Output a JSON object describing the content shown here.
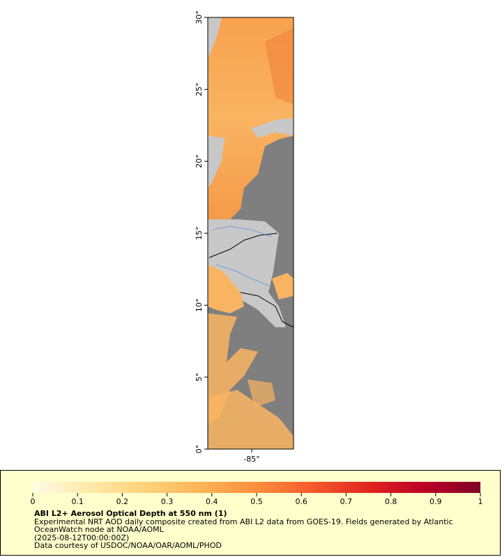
{
  "map": {
    "ylim": [
      0,
      30
    ],
    "yticks": [
      {
        "value": 0,
        "label": "0°"
      },
      {
        "value": 5,
        "label": "5°"
      },
      {
        "value": 10,
        "label": "10°"
      },
      {
        "value": 15,
        "label": "15°"
      },
      {
        "value": 20,
        "label": "20°"
      },
      {
        "value": 25,
        "label": "25°"
      },
      {
        "value": 30,
        "label": "30°"
      }
    ],
    "xlim": [
      -88.05,
      -82.1
    ],
    "xticks": [
      {
        "value": -85,
        "label": "-85°"
      }
    ]
  },
  "colorbar": {
    "lim": [
      0,
      1
    ],
    "ticks": [
      0,
      0.1,
      0.2,
      0.3,
      0.4,
      0.5,
      0.6,
      0.7,
      0.8,
      0.9,
      1
    ],
    "colors": [
      "#fffbe6",
      "#ffe9a8",
      "#fed27a",
      "#fdb456",
      "#fc8d3d",
      "#f55a2c",
      "#e0251e",
      "#bd0026",
      "#800026"
    ]
  },
  "legend": {
    "title": "ABI L2+ Aerosol Optical Depth at 550 nm (1)",
    "description": "Experimental NRT AOD daily composite created from ABI L2 data from GOES-19. Fields generated by Atlantic OceanWatch node at NOAA/AOML",
    "time": "(2025-08-12T00:00:00Z)",
    "credit": "Data courtesy of USDOC/NOAA/OAR/AOML/PHOD"
  }
}
